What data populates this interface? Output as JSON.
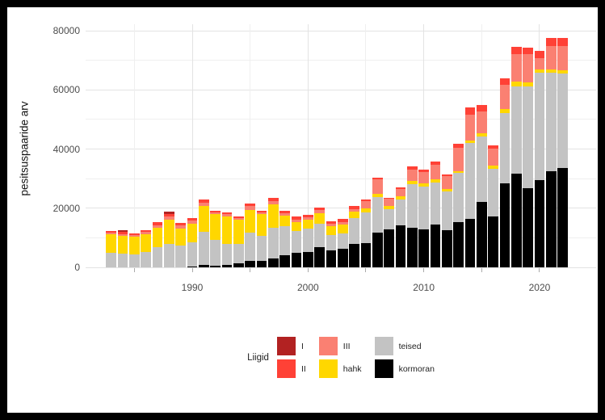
{
  "figure": {
    "y_axis_title": "pesitsuspaaride arv",
    "y_ticks": [
      0,
      20000,
      40000,
      60000,
      80000
    ],
    "y_gridlines": [
      0,
      10000,
      20000,
      30000,
      40000,
      50000,
      60000,
      70000,
      80000
    ],
    "x_ticks": [
      1990,
      2000,
      2010,
      2020
    ],
    "x_tick_marks": [
      1985,
      1990,
      1995,
      2000,
      2005,
      2010,
      2015,
      2020
    ],
    "legend": {
      "title": "Liigid",
      "entries": [
        {
          "label": "I",
          "color": "#B22222"
        },
        {
          "label": "II",
          "color": "#FF4136"
        },
        {
          "label": "III",
          "color": "#FA8072"
        },
        {
          "label": "hahk",
          "color": "#FFD700"
        },
        {
          "label": "teised",
          "color": "#C3C3C3"
        },
        {
          "label": "kormoran",
          "color": "#000000"
        }
      ]
    }
  },
  "chart_data": {
    "type": "bar",
    "stacked": true,
    "title": "",
    "xlabel": "",
    "ylabel": "pesitsuspaaride arv",
    "ylim": [
      0,
      80000
    ],
    "xlim": [
      1982,
      2023
    ],
    "grid": "major and minor, light gray on white",
    "legend_title": "Liigid",
    "legend_position": "bottom center",
    "x": [
      1983,
      1984,
      1985,
      1986,
      1987,
      1988,
      1989,
      1990,
      1991,
      1992,
      1993,
      1994,
      1995,
      1996,
      1997,
      1998,
      1999,
      2000,
      2001,
      2002,
      2003,
      2004,
      2005,
      2006,
      2007,
      2008,
      2009,
      2010,
      2011,
      2012,
      2013,
      2014,
      2015,
      2016,
      2017,
      2018,
      2019,
      2020,
      2021,
      2022
    ],
    "series": [
      {
        "name": "kormoran",
        "color": "#000000",
        "values": [
          0,
          0,
          0,
          0,
          0,
          0,
          0,
          200,
          700,
          500,
          700,
          1400,
          2100,
          2300,
          3000,
          4000,
          4800,
          5300,
          6900,
          5700,
          6400,
          7800,
          8200,
          11700,
          12700,
          14300,
          13400,
          12800,
          14400,
          12600,
          15200,
          16400,
          22100,
          17100,
          28500,
          31700,
          26700,
          29400,
          32600,
          33500
        ]
      },
      {
        "name": "teised",
        "color": "#C3C3C3",
        "values": [
          5000,
          4600,
          4400,
          5300,
          6900,
          8000,
          7300,
          8200,
          11400,
          8900,
          7300,
          6600,
          9600,
          8300,
          10500,
          10000,
          7600,
          7700,
          7900,
          5200,
          5100,
          8900,
          10300,
          12000,
          6900,
          8500,
          14800,
          14600,
          14300,
          13000,
          16700,
          25600,
          22000,
          16100,
          23600,
          29400,
          34500,
          36400,
          33200,
          32000
        ]
      },
      {
        "name": "hahk",
        "color": "#FFD700",
        "values": [
          6200,
          6100,
          5900,
          5900,
          6400,
          8200,
          5800,
          6400,
          8600,
          8600,
          9300,
          8000,
          7700,
          7400,
          7700,
          3500,
          2900,
          3000,
          3400,
          2900,
          2900,
          2000,
          1400,
          1200,
          1100,
          1100,
          1100,
          1100,
          1100,
          900,
          700,
          1000,
          1200,
          1200,
          1400,
          1600,
          1400,
          1200,
          1100,
          1100
        ]
      },
      {
        "name": "III",
        "color": "#FA8072",
        "values": [
          500,
          600,
          600,
          700,
          1000,
          900,
          1000,
          1000,
          1200,
          700,
          600,
          600,
          1400,
          700,
          1200,
          700,
          900,
          1000,
          1100,
          900,
          900,
          1000,
          2400,
          4800,
          2500,
          2600,
          3800,
          3600,
          4800,
          4300,
          7700,
          8500,
          7300,
          5700,
          8200,
          9500,
          9500,
          3800,
          7800,
          8200
        ]
      },
      {
        "name": "II",
        "color": "#FF4136",
        "values": [
          600,
          800,
          700,
          600,
          900,
          900,
          900,
          900,
          1100,
          500,
          600,
          500,
          900,
          500,
          1100,
          1000,
          900,
          800,
          1000,
          800,
          1100,
          1000,
          700,
          600,
          400,
          600,
          900,
          900,
          1300,
          600,
          1400,
          2500,
          2300,
          1100,
          2300,
          2300,
          2100,
          2300,
          2900,
          2700
        ]
      },
      {
        "name": "I",
        "color": "#B22222",
        "values": [
          0,
          500,
          0,
          0,
          0,
          900,
          0,
          0,
          0,
          0,
          0,
          0,
          0,
          0,
          0,
          0,
          0,
          0,
          0,
          0,
          0,
          0,
          0,
          0,
          0,
          0,
          0,
          0,
          0,
          0,
          0,
          0,
          0,
          0,
          0,
          0,
          0,
          0,
          0,
          0
        ]
      }
    ]
  }
}
